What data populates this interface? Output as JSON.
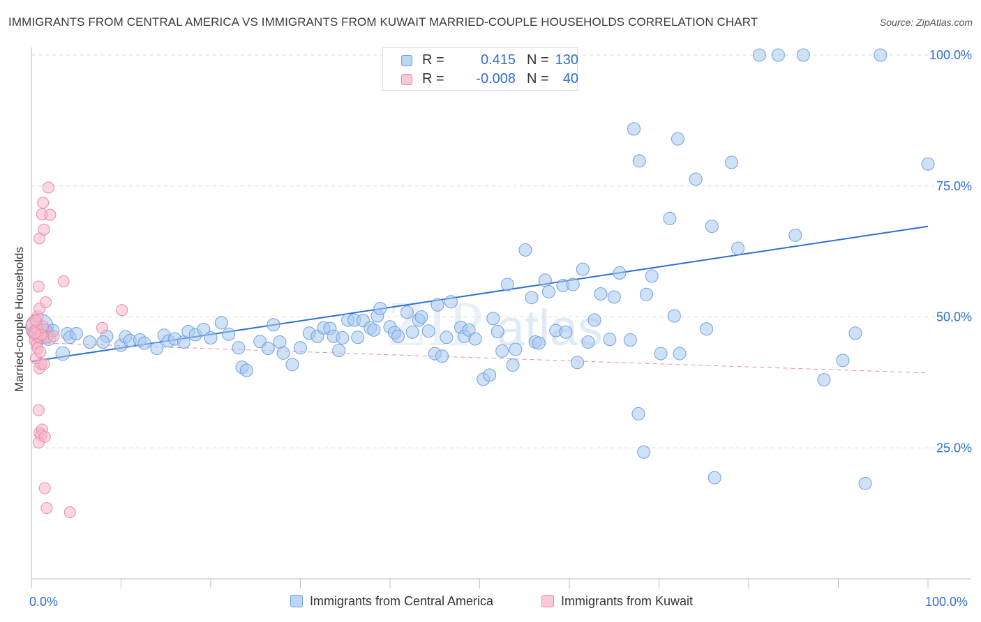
{
  "header": {
    "title": "IMMIGRANTS FROM CENTRAL AMERICA VS IMMIGRANTS FROM KUWAIT MARRIED-COUPLE HOUSEHOLDS CORRELATION CHART",
    "source": "Source: ZipAtlas.com"
  },
  "watermark": {
    "zip": "ZIP",
    "atlas": "atlas"
  },
  "legend_top": {
    "r_label": "R =",
    "n_label": "N =",
    "rows": [
      {
        "r": "0.415",
        "n": "130"
      },
      {
        "r": "-0.008",
        "n": "40"
      }
    ]
  },
  "colors": {
    "blue_fill": "#a8c8f0",
    "blue_stroke": "#6f9fdc",
    "blue_line": "#2f6fd0",
    "pink_fill": "#f6b6c8",
    "pink_stroke": "#e88aa6",
    "pink_line": "#e88aa6",
    "axis_text": "#2f6fd0",
    "grid": "#d6d6d6"
  },
  "chart_data": {
    "type": "scatter",
    "ylabel": "Married-couple Households",
    "xlim": [
      0,
      100
    ],
    "ylim": [
      0,
      104
    ],
    "x_tick_labels": [
      "0.0%",
      "100.0%"
    ],
    "y_ticks": [
      {
        "value": 25,
        "label": "25.0%"
      },
      {
        "value": 50,
        "label": "50.0%"
      },
      {
        "value": 75,
        "label": "75.0%"
      },
      {
        "value": 100,
        "label": "100.0%"
      }
    ],
    "grid": true,
    "legend": "bottom-center",
    "series": [
      {
        "name": "Immigrants from Central America",
        "color": "#a8c8f0",
        "trend": {
          "x": [
            0,
            100
          ],
          "y": [
            41.5,
            67.3
          ],
          "style": "solid"
        },
        "points": [
          [
            0.9,
            48.0,
            2.2
          ],
          [
            1.2,
            46.8,
            1.6
          ],
          [
            1.5,
            47.1,
            1.3
          ],
          [
            1.9,
            46.0,
            1.2
          ],
          [
            2.4,
            47.4,
            1.0
          ],
          [
            3.5,
            43.0,
            1.1
          ],
          [
            4.0,
            46.8,
            1.0
          ],
          [
            4.3,
            46.1,
            1.0
          ],
          [
            5.0,
            46.8,
            1.0
          ],
          [
            6.5,
            45.2,
            1.0
          ],
          [
            8.4,
            46.3,
            1.0
          ],
          [
            8.0,
            45.2,
            1.0
          ],
          [
            10.0,
            44.6,
            1.0
          ],
          [
            10.5,
            46.2,
            1.0
          ],
          [
            11.0,
            45.5,
            1.0
          ],
          [
            12.1,
            45.6,
            1.0
          ],
          [
            12.6,
            45.0,
            1.0
          ],
          [
            14.0,
            44.0,
            1.0
          ],
          [
            14.8,
            46.5,
            1.0
          ],
          [
            15.3,
            45.4,
            1.0
          ],
          [
            16.0,
            45.8,
            1.0
          ],
          [
            17.0,
            45.2,
            1.0
          ],
          [
            17.5,
            47.2,
            1.0
          ],
          [
            18.3,
            46.6,
            1.0
          ],
          [
            19.2,
            47.6,
            1.0
          ],
          [
            20.0,
            46.0,
            1.0
          ],
          [
            21.2,
            48.9,
            1.0
          ],
          [
            22.0,
            46.7,
            1.0
          ],
          [
            23.1,
            44.1,
            1.0
          ],
          [
            23.5,
            40.4,
            1.0
          ],
          [
            24.0,
            39.8,
            1.0
          ],
          [
            25.5,
            45.3,
            1.0
          ],
          [
            26.4,
            44.0,
            1.0
          ],
          [
            27.0,
            48.5,
            1.0
          ],
          [
            27.7,
            45.2,
            1.0
          ],
          [
            28.1,
            43.1,
            1.0
          ],
          [
            29.1,
            40.9,
            1.0
          ],
          [
            30.0,
            44.1,
            1.0
          ],
          [
            31.0,
            46.9,
            1.0
          ],
          [
            31.9,
            46.3,
            1.0
          ],
          [
            32.6,
            47.9,
            1.0
          ],
          [
            33.3,
            47.8,
            1.0
          ],
          [
            33.7,
            46.3,
            1.0
          ],
          [
            34.3,
            43.6,
            1.0
          ],
          [
            34.7,
            46.0,
            1.0
          ],
          [
            35.3,
            49.4,
            1.0
          ],
          [
            36.0,
            49.4,
            1.0
          ],
          [
            36.4,
            46.1,
            1.0
          ],
          [
            37.0,
            49.3,
            1.0
          ],
          [
            37.8,
            47.9,
            1.0
          ],
          [
            38.2,
            47.5,
            1.0
          ],
          [
            38.6,
            50.2,
            1.0
          ],
          [
            38.9,
            51.6,
            1.0
          ],
          [
            40.0,
            48.1,
            1.0
          ],
          [
            40.5,
            47.0,
            1.0
          ],
          [
            40.9,
            46.3,
            1.0
          ],
          [
            41.9,
            50.9,
            1.0
          ],
          [
            42.5,
            47.1,
            1.0
          ],
          [
            43.2,
            49.4,
            1.0
          ],
          [
            43.5,
            50.0,
            1.0
          ],
          [
            44.3,
            47.3,
            1.0
          ],
          [
            45.0,
            43.0,
            1.0
          ],
          [
            45.3,
            52.3,
            1.0
          ],
          [
            45.8,
            42.5,
            1.0
          ],
          [
            46.3,
            46.1,
            1.0
          ],
          [
            46.8,
            52.9,
            1.0
          ],
          [
            47.9,
            48.0,
            1.0
          ],
          [
            48.3,
            46.3,
            1.0
          ],
          [
            48.8,
            47.5,
            1.0
          ],
          [
            49.5,
            45.8,
            1.0
          ],
          [
            50.4,
            38.1,
            1.0
          ],
          [
            51.1,
            38.9,
            1.0
          ],
          [
            51.5,
            49.7,
            1.0
          ],
          [
            52.0,
            47.2,
            1.0
          ],
          [
            52.5,
            43.5,
            1.0
          ],
          [
            53.1,
            56.2,
            1.0
          ],
          [
            53.7,
            40.8,
            1.0
          ],
          [
            54.0,
            43.8,
            1.0
          ],
          [
            55.1,
            62.8,
            1.0
          ],
          [
            55.8,
            53.7,
            1.0
          ],
          [
            56.2,
            45.2,
            1.0
          ],
          [
            56.6,
            45.0,
            1.0
          ],
          [
            57.3,
            57.0,
            1.0
          ],
          [
            57.7,
            54.8,
            1.0
          ],
          [
            58.5,
            47.4,
            1.0
          ],
          [
            59.3,
            56.0,
            1.0
          ],
          [
            59.6,
            47.1,
            1.0
          ],
          [
            60.4,
            56.2,
            1.0
          ],
          [
            60.9,
            41.3,
            1.0
          ],
          [
            61.5,
            59.1,
            1.0
          ],
          [
            62.1,
            45.2,
            1.0
          ],
          [
            62.8,
            49.4,
            1.0
          ],
          [
            63.5,
            54.4,
            1.0
          ],
          [
            64.5,
            45.7,
            1.0
          ],
          [
            65.0,
            53.8,
            1.0
          ],
          [
            65.6,
            58.4,
            1.0
          ],
          [
            66.8,
            45.6,
            1.0
          ],
          [
            67.2,
            85.9,
            1.0
          ],
          [
            67.7,
            31.5,
            1.0
          ],
          [
            67.8,
            79.8,
            1.0
          ],
          [
            68.3,
            24.2,
            1.0
          ],
          [
            68.6,
            54.3,
            1.0
          ],
          [
            69.2,
            57.8,
            1.0
          ],
          [
            70.2,
            43.0,
            1.0
          ],
          [
            71.2,
            68.8,
            1.0
          ],
          [
            71.7,
            50.2,
            1.0
          ],
          [
            72.1,
            84.0,
            1.0
          ],
          [
            72.3,
            43.0,
            1.0
          ],
          [
            74.1,
            76.3,
            1.0
          ],
          [
            75.3,
            47.7,
            1.0
          ],
          [
            75.9,
            67.3,
            1.0
          ],
          [
            76.2,
            19.3,
            1.0
          ],
          [
            78.1,
            79.5,
            1.0
          ],
          [
            78.8,
            63.1,
            1.0
          ],
          [
            81.2,
            100.0,
            1.0
          ],
          [
            83.3,
            100.0,
            1.0
          ],
          [
            85.2,
            65.6,
            1.0
          ],
          [
            86.1,
            100.0,
            1.0
          ],
          [
            88.4,
            38.0,
            1.0
          ],
          [
            90.5,
            41.7,
            1.0
          ],
          [
            91.9,
            46.9,
            1.0
          ],
          [
            93.0,
            18.2,
            1.0
          ],
          [
            94.7,
            100.0,
            1.0
          ],
          [
            100.0,
            79.2,
            1.0
          ]
        ]
      },
      {
        "name": "Immigrants from Kuwait",
        "color": "#f6b6c8",
        "trend": {
          "x": [
            0,
            100
          ],
          "y": [
            45.1,
            39.3
          ],
          "style": "dashed"
        },
        "points": [
          [
            0.3,
            48.4,
            1.4
          ],
          [
            0.4,
            47.0,
            1.3
          ],
          [
            0.5,
            45.5,
            1.2
          ],
          [
            0.6,
            44.8,
            1.0
          ],
          [
            0.7,
            50.1,
            1.0
          ],
          [
            0.8,
            46.2,
            1.0
          ],
          [
            0.9,
            51.6,
            1.0
          ],
          [
            0.5,
            42.1,
            1.0
          ],
          [
            0.9,
            40.2,
            1.0
          ],
          [
            1.1,
            41.0,
            1.0
          ],
          [
            0.8,
            55.8,
            1.0
          ],
          [
            0.9,
            65.0,
            1.0
          ],
          [
            1.2,
            69.6,
            1.0
          ],
          [
            1.3,
            71.8,
            1.0
          ],
          [
            1.4,
            66.7,
            1.0
          ],
          [
            1.9,
            74.7,
            1.0
          ],
          [
            2.1,
            69.5,
            1.0
          ],
          [
            1.6,
            52.8,
            1.0
          ],
          [
            3.6,
            56.8,
            1.0
          ],
          [
            7.9,
            47.9,
            1.0
          ],
          [
            10.1,
            51.3,
            1.0
          ],
          [
            0.8,
            32.2,
            1.0
          ],
          [
            0.9,
            27.9,
            1.0
          ],
          [
            1.2,
            28.5,
            1.0
          ],
          [
            1.1,
            27.4,
            1.0
          ],
          [
            0.8,
            26.0,
            1.0
          ],
          [
            1.5,
            27.1,
            1.0
          ],
          [
            1.5,
            17.3,
            1.0
          ],
          [
            1.7,
            13.5,
            1.0
          ],
          [
            4.3,
            12.7,
            1.0
          ],
          [
            0.6,
            47.7,
            1.0
          ],
          [
            1.3,
            48.2,
            1.0
          ],
          [
            1.8,
            46.1,
            1.0
          ],
          [
            0.7,
            44.0,
            1.0
          ],
          [
            1.0,
            43.3,
            1.0
          ],
          [
            1.4,
            41.0,
            1.0
          ],
          [
            0.5,
            49.3,
            1.0
          ],
          [
            1.1,
            46.6,
            1.0
          ],
          [
            2.5,
            46.3,
            1.0
          ],
          [
            0.4,
            46.9,
            1.0
          ]
        ]
      }
    ]
  }
}
